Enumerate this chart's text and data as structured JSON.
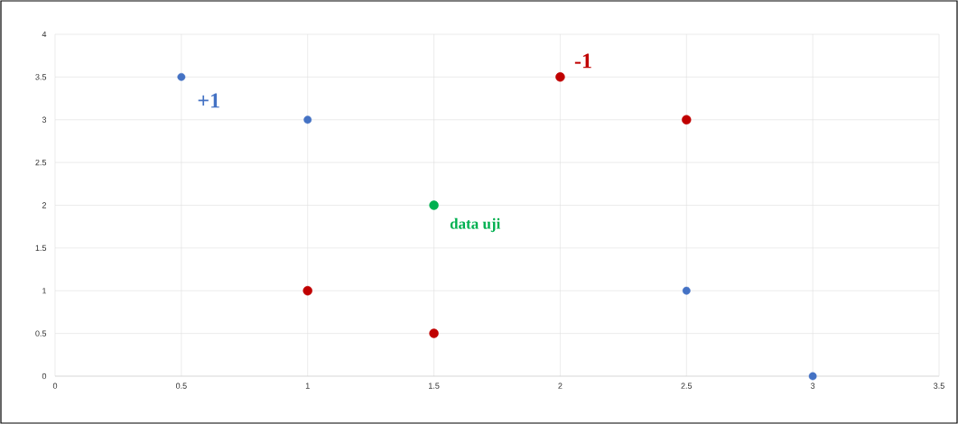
{
  "chart_data": {
    "type": "scatter",
    "xlim": [
      0,
      3.5
    ],
    "ylim": [
      0,
      4
    ],
    "xticks": [
      0,
      0.5,
      1,
      1.5,
      2,
      2.5,
      3,
      3.5
    ],
    "yticks": [
      0,
      0.5,
      1,
      1.5,
      2,
      2.5,
      3,
      3.5,
      4
    ],
    "grid": true,
    "legend": false,
    "marker": "circle",
    "series": [
      {
        "name": "+1",
        "color": "#4472c4",
        "x": [
          0.5,
          1,
          2.5,
          3
        ],
        "values": [
          3.5,
          3,
          1,
          0
        ]
      },
      {
        "name": "-1",
        "color": "#c00000",
        "x": [
          2,
          2.5,
          1,
          1.5
        ],
        "values": [
          3.5,
          3,
          1,
          0.5
        ]
      },
      {
        "name": "data uji",
        "color": "#00b050",
        "x": [
          1.5
        ],
        "values": [
          2
        ]
      }
    ]
  }
}
